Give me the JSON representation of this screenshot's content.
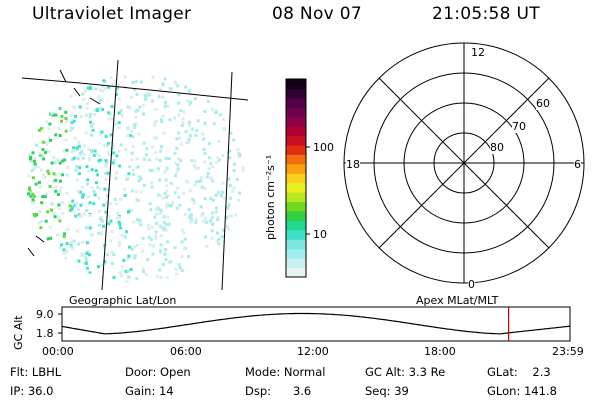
{
  "header": {
    "instrument": "Ultraviolet Imager",
    "date": "08 Nov 07",
    "time": "21:05:58 UT"
  },
  "colorbar": {
    "label": "photon cm⁻²s⁻¹",
    "ticks": [
      {
        "label": "100",
        "value": 100
      },
      {
        "label": "10",
        "value": 10
      }
    ],
    "colors": [
      "#e8f4f4",
      "#c8f0f0",
      "#a0eeee",
      "#7ae8e0",
      "#40e0c8",
      "#20d890",
      "#30d040",
      "#70d820",
      "#b8e820",
      "#e8f020",
      "#f8d020",
      "#f8a010",
      "#f07010",
      "#e03010",
      "#c81020",
      "#b00030",
      "#900048",
      "#700050",
      "#500048",
      "#300030",
      "#100018"
    ]
  },
  "left_panel": {
    "label": "Geographic Lat/Lon"
  },
  "polar_plot": {
    "label": "Apex MLat/MLT",
    "mlt_labels": {
      "top": "12",
      "left": "18",
      "right": "6",
      "bottom": "0"
    },
    "lat_labels": [
      {
        "label": "60",
        "value": 60
      },
      {
        "label": "70",
        "value": 70
      },
      {
        "label": "80",
        "value": 80
      }
    ]
  },
  "altitude_plot": {
    "ylabel": "GC Alt",
    "yticks": [
      {
        "label": "9.0",
        "value": 9.0
      },
      {
        "label": "1.8",
        "value": 1.8
      }
    ],
    "xticks": [
      "00:00",
      "06:00",
      "12:00",
      "18:00",
      "23:59"
    ],
    "current_time_hours": 21.1,
    "marker_color": "#d00000"
  },
  "info": {
    "rows": [
      [
        {
          "name": "filter",
          "text": "Flt: LBHL"
        },
        {
          "name": "door",
          "text": "Door: Open"
        },
        {
          "name": "mode",
          "text": "Mode: Normal"
        },
        {
          "name": "gc-alt",
          "text": "GC Alt: 3.3 Re"
        },
        {
          "name": "glat",
          "text": "GLat:    2.3"
        }
      ],
      [
        {
          "name": "ip",
          "text": "IP: 36.0"
        },
        {
          "name": "gain",
          "text": "Gain: 14"
        },
        {
          "name": "dsp",
          "text": "Dsp:      3.6"
        },
        {
          "name": "seq",
          "text": "Seq: 39"
        },
        {
          "name": "glon",
          "text": "GLon: 141.8"
        }
      ]
    ]
  }
}
